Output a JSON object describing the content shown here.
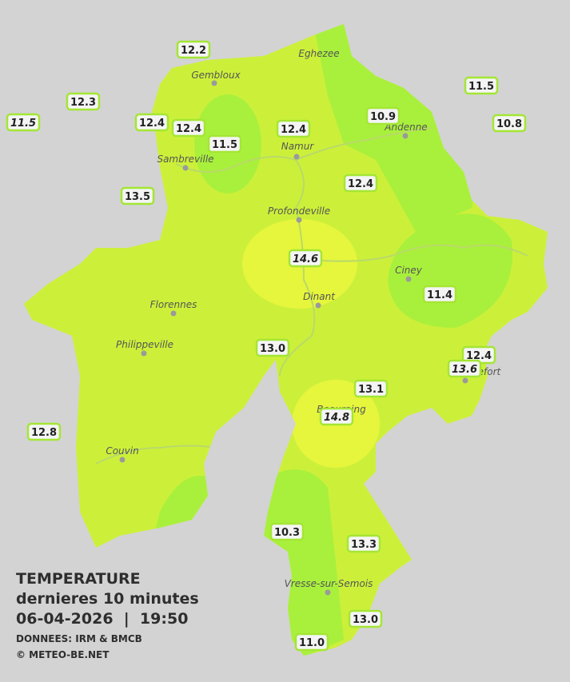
{
  "header": {
    "title": "TEMPERATURE",
    "subtitle": "dernieres 10 minutes",
    "datetime": "06-04-2026  |  19:50",
    "source": "DONNEES: IRM & BMCB",
    "copyright": "© METEO-BE.NET"
  },
  "cities": [
    "Eghezee",
    "Gembloux",
    "Andenne",
    "Namur",
    "Sambreville",
    "Profondeville",
    "Ciney",
    "Dinant",
    "Florennes",
    "Philippeville",
    "Rochefort",
    "Beauraing",
    "Couvin",
    "Vresse-sur-Semois"
  ],
  "stations": [
    {
      "label": "12.2"
    },
    {
      "label": "12.3"
    },
    {
      "label": "11.5",
      "italic": true
    },
    {
      "label": "12.4"
    },
    {
      "label": "12.4"
    },
    {
      "label": "11.5"
    },
    {
      "label": "12.4"
    },
    {
      "label": "10.9"
    },
    {
      "label": "11.5"
    },
    {
      "label": "10.8"
    },
    {
      "label": "13.5"
    },
    {
      "label": "12.4"
    },
    {
      "label": "14.6",
      "italic": true
    },
    {
      "label": "11.4"
    },
    {
      "label": "13.0"
    },
    {
      "label": "12.4"
    },
    {
      "label": "13.6",
      "italic": true
    },
    {
      "label": "13.1"
    },
    {
      "label": "14.8",
      "italic": true
    },
    {
      "label": "12.8"
    },
    {
      "label": "10.3"
    },
    {
      "label": "13.3"
    },
    {
      "label": "13.0"
    },
    {
      "label": "11.0"
    }
  ]
}
